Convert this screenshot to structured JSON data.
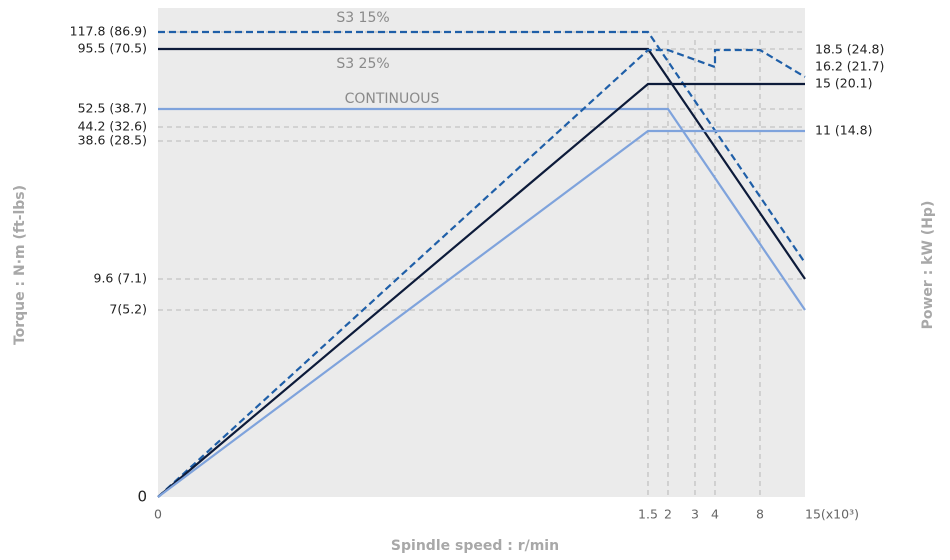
{
  "chart_data": {
    "type": "line",
    "x_label": "Spindle speed : r/min",
    "y_label": "Torque : N·m (ft-lbs)",
    "y2_label": "Power : kW (Hp)",
    "xlim": [
      0,
      15
    ],
    "xticks": [
      0,
      1.5,
      2,
      3,
      4,
      8,
      {
        "value": 15,
        "label": "15(x10³)"
      }
    ],
    "ylim": [
      0,
      117.8
    ],
    "yticks": [
      {
        "value": 117.8,
        "label": "117.8 (86.9)"
      },
      {
        "value": 95.5,
        "label": "95.5 (70.5)"
      },
      {
        "value": 52.5,
        "label": "52.5 (38.7)"
      },
      {
        "value": 44.2,
        "label": "44.2 (32.6)"
      },
      {
        "value": 38.6,
        "label": "38.6 (28.5)"
      },
      {
        "value": 9.6,
        "label": "9.6 (7.1)"
      },
      {
        "value": 7,
        "label": "7(5.2)"
      },
      0
    ],
    "y2lim": [
      0,
      18.5
    ],
    "y2ticks": [
      {
        "value": 18.5,
        "label": "18.5 (24.8)"
      },
      {
        "value": 16.2,
        "label": "16.2 (21.7)"
      },
      {
        "value": 15,
        "label": "15 (20.1)"
      },
      {
        "value": 11,
        "label": "11 (14.8)"
      }
    ],
    "grid": true,
    "series": [
      {
        "name": "S3 15%",
        "color": "#1f5fa8",
        "dashed": true,
        "x": [
          0,
          1.5,
          15
        ],
        "values": [
          117.8,
          117.8,
          13
        ]
      },
      {
        "name": "S3 25%",
        "color": "#0d1b3a",
        "dashed": false,
        "x": [
          0,
          1.5,
          15
        ],
        "values": [
          95.5,
          95.5,
          9.6
        ]
      },
      {
        "name": "CONTINUOUS",
        "color": "#7fa3dc",
        "dashed": false,
        "x": [
          0,
          2,
          15
        ],
        "values": [
          52.5,
          52.5,
          7
        ]
      },
      {
        "color": "#1f5fa8",
        "dashed": true,
        "axis": "y2",
        "x": [
          0,
          1.5,
          2,
          4,
          4,
          8,
          15
        ],
        "values": [
          0,
          18.5,
          18.5,
          16.2,
          18.5,
          18.5,
          15.5
        ]
      },
      {
        "color": "#0d1b3a",
        "dashed": false,
        "axis": "y2",
        "x": [
          0,
          1.5,
          15
        ],
        "values": [
          0,
          15,
          15
        ]
      },
      {
        "color": "#7fa3dc",
        "dashed": false,
        "axis": "y2",
        "x": [
          0,
          1.5,
          15
        ],
        "values": [
          0,
          11,
          11
        ]
      }
    ]
  }
}
